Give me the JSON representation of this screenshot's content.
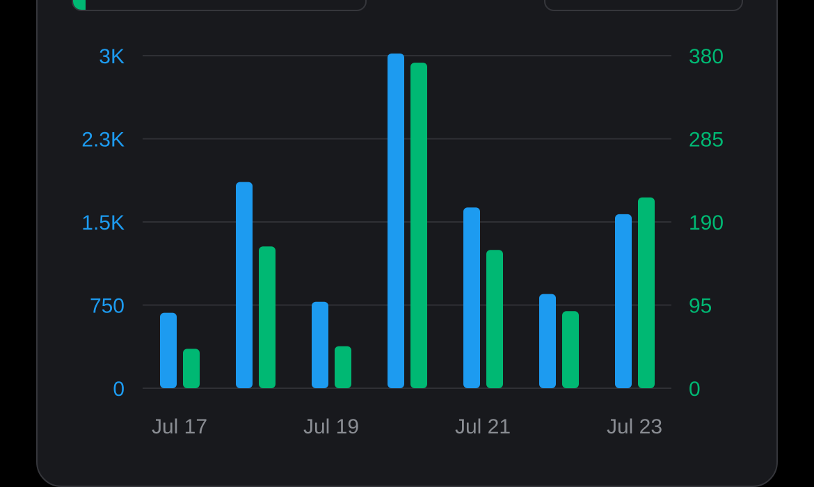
{
  "colors": {
    "background": "#18191d",
    "grid": "#2f3035",
    "left_axis": "#1d9bf0",
    "right_axis": "#00b873",
    "x_axis": "#8a8d93"
  },
  "chart_data": {
    "type": "bar",
    "categories": [
      "Jul 17",
      "Jul 18",
      "Jul 19",
      "Jul 20",
      "Jul 21",
      "Jul 22",
      "Jul 23"
    ],
    "x_tick_labels": [
      "Jul 17",
      "",
      "Jul 19",
      "",
      "Jul 21",
      "",
      "Jul 23"
    ],
    "series": [
      {
        "axis": "left",
        "color": "#1d9bf0",
        "values": [
          680,
          1860,
          780,
          3020,
          1630,
          850,
          1570
        ]
      },
      {
        "axis": "right",
        "color": "#00b873",
        "values": [
          45,
          162,
          48,
          372,
          158,
          88,
          218
        ]
      }
    ],
    "y_left": {
      "ticks": [
        0,
        750,
        1500,
        2250,
        3000
      ],
      "tick_labels": [
        "0",
        "750",
        "1.5K",
        "2.3K",
        "3K"
      ],
      "ylim": [
        0,
        3000
      ]
    },
    "y_right": {
      "ticks": [
        0,
        95,
        190,
        285,
        380
      ],
      "tick_labels": [
        "0",
        "95",
        "190",
        "285",
        "380"
      ],
      "ylim": [
        0,
        380
      ]
    },
    "grid": true,
    "legend": "none"
  }
}
